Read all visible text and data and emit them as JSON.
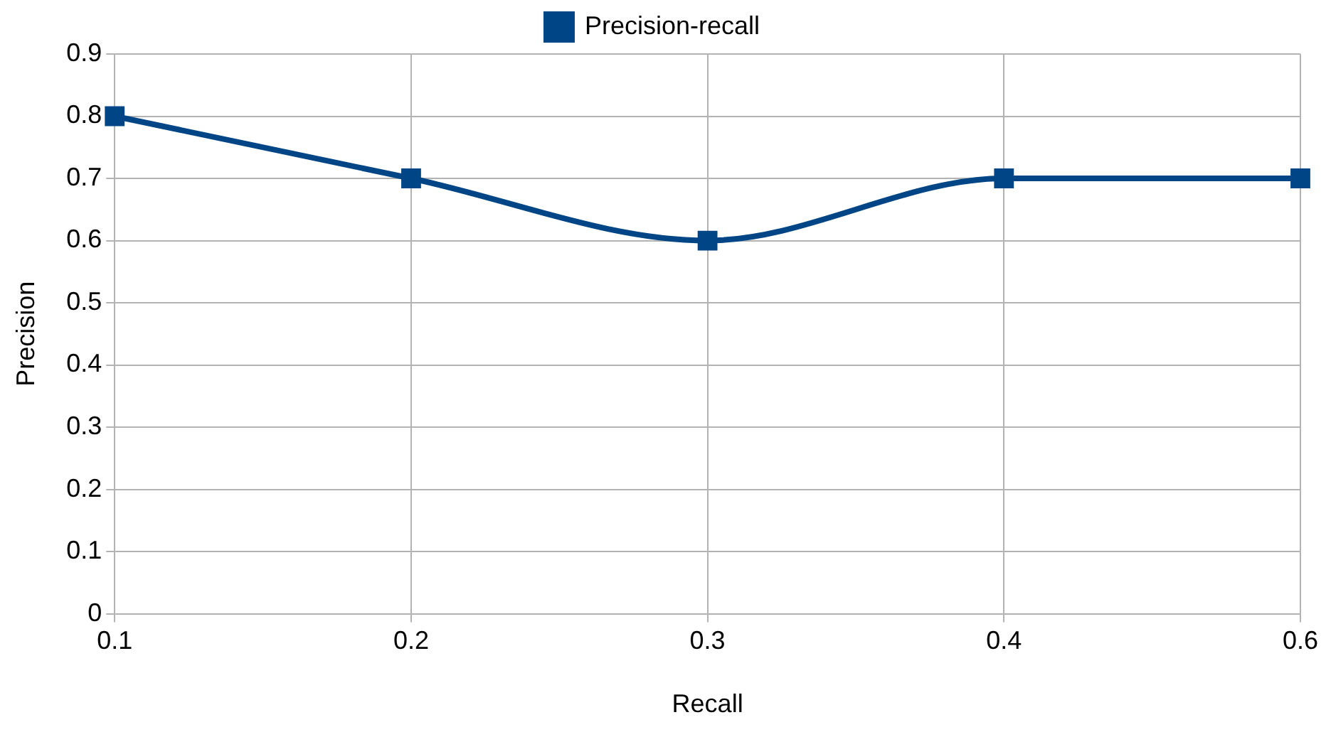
{
  "chart_data": {
    "type": "line",
    "xlabel": "Recall",
    "ylabel": "Precision",
    "categories": [
      "0.1",
      "0.2",
      "0.3",
      "0.4",
      "0.6"
    ],
    "series": [
      {
        "name": "Precision-recall",
        "color": "#004586",
        "values": [
          0.8,
          0.7,
          0.6,
          0.7,
          0.7
        ]
      }
    ],
    "ylim": [
      0,
      0.9
    ],
    "yticks": [
      0,
      0.1,
      0.2,
      0.3,
      0.4,
      0.5,
      0.6,
      0.7,
      0.8,
      0.9
    ],
    "grid": true,
    "legend": "top",
    "marker": "square",
    "line_style": "solid"
  }
}
